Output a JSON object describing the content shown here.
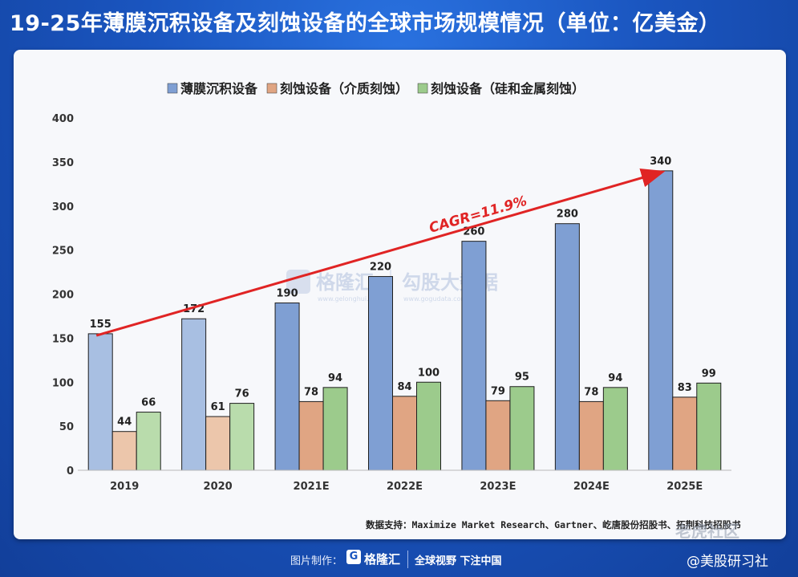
{
  "title": "19-25年薄膜沉积设备及刻蚀设备的全球市场规模情况（单位：亿美金）",
  "chart_data": {
    "type": "bar",
    "categories": [
      "2019",
      "2020",
      "2021E",
      "2022E",
      "2023E",
      "2024E",
      "2025E"
    ],
    "series": [
      {
        "name": "薄膜沉积设备",
        "values": [
          155,
          172,
          190,
          220,
          260,
          280,
          340
        ],
        "color": "#7f9fd3",
        "color_light": "#a8bfe2"
      },
      {
        "name": "刻蚀设备（介质刻蚀）",
        "values": [
          44,
          61,
          78,
          84,
          79,
          78,
          83
        ],
        "color": "#e0a583",
        "color_light": "#ecc6ab"
      },
      {
        "name": "刻蚀设备（硅和金属刻蚀）",
        "values": [
          66,
          76,
          94,
          100,
          95,
          94,
          99
        ],
        "color": "#9ccb8c",
        "color_light": "#b9dcac"
      }
    ],
    "light_categories": [
      "2019",
      "2020"
    ],
    "ylim": [
      0,
      400
    ],
    "yticks": [
      0,
      50,
      100,
      150,
      200,
      250,
      300,
      350,
      400
    ],
    "xlabel": "",
    "ylabel": "",
    "legend_position": "top",
    "grid": false,
    "annotation": {
      "text": "CAGR=11.9%",
      "color": "#e02424",
      "from": {
        "x": "2019",
        "y": 153
      },
      "to": {
        "x": "2025E",
        "y": 340
      }
    }
  },
  "source_note": "数据支持：Maximize Market Research、Gartner、屹唐股份招股书、拓荆科技招股书",
  "watermark": {
    "brand1": "格隆汇",
    "url1": "www.gelonghui.com",
    "brand2": "勾股大数据",
    "url2": "www.gogudata.com"
  },
  "corner_watermark": "老虎社区",
  "footer": {
    "made_by": "图片制作：",
    "logo_letter": "G",
    "brand": "格隆汇",
    "slogan": "全球视野 下注中国",
    "account": "@美股研习社"
  }
}
